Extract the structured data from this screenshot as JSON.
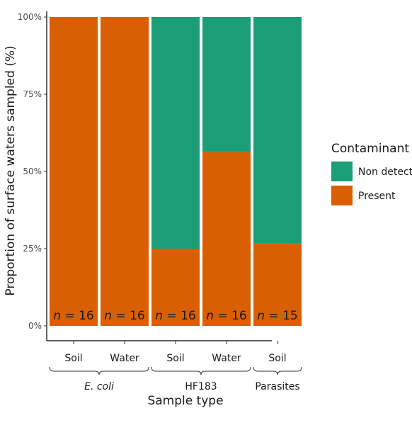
{
  "chart_data": {
    "type": "bar",
    "stacked": true,
    "title": "",
    "xlabel": "Sample type",
    "ylabel": "Proportion of surface waters sampled  (%)",
    "ylim": [
      0,
      100
    ],
    "yticks": [
      "0%",
      "25%",
      "50%",
      "75%",
      "100%"
    ],
    "categories": [
      "Soil",
      "Water",
      "Soil",
      "Water",
      "Soil"
    ],
    "groups": [
      {
        "label": "E. coli",
        "italic": true,
        "start": 0,
        "end": 1
      },
      {
        "label": "HF183",
        "italic": false,
        "start": 2,
        "end": 3
      },
      {
        "label": "Parasites",
        "italic": false,
        "start": 4,
        "end": 4
      }
    ],
    "series": [
      {
        "name": "Present",
        "color": "#d95f02",
        "values": [
          100,
          100,
          25,
          56.25,
          26.7
        ]
      },
      {
        "name": "Non detect",
        "color": "#1b9e77",
        "values": [
          0,
          0,
          75,
          43.75,
          73.3
        ]
      }
    ],
    "n_labels": [
      {
        "prefix": "n",
        "text": " = 16"
      },
      {
        "prefix": "n",
        "text": " = 16"
      },
      {
        "prefix": "n",
        "text": " = 16"
      },
      {
        "prefix": "n",
        "text": " = 16"
      },
      {
        "prefix": "n",
        "text": " = 15"
      }
    ],
    "legend": {
      "title": "Contaminant",
      "position": "right",
      "entries": [
        {
          "label": "Non detect",
          "color": "#1b9e77"
        },
        {
          "label": "Present",
          "color": "#d95f02"
        }
      ]
    },
    "grid": false
  }
}
